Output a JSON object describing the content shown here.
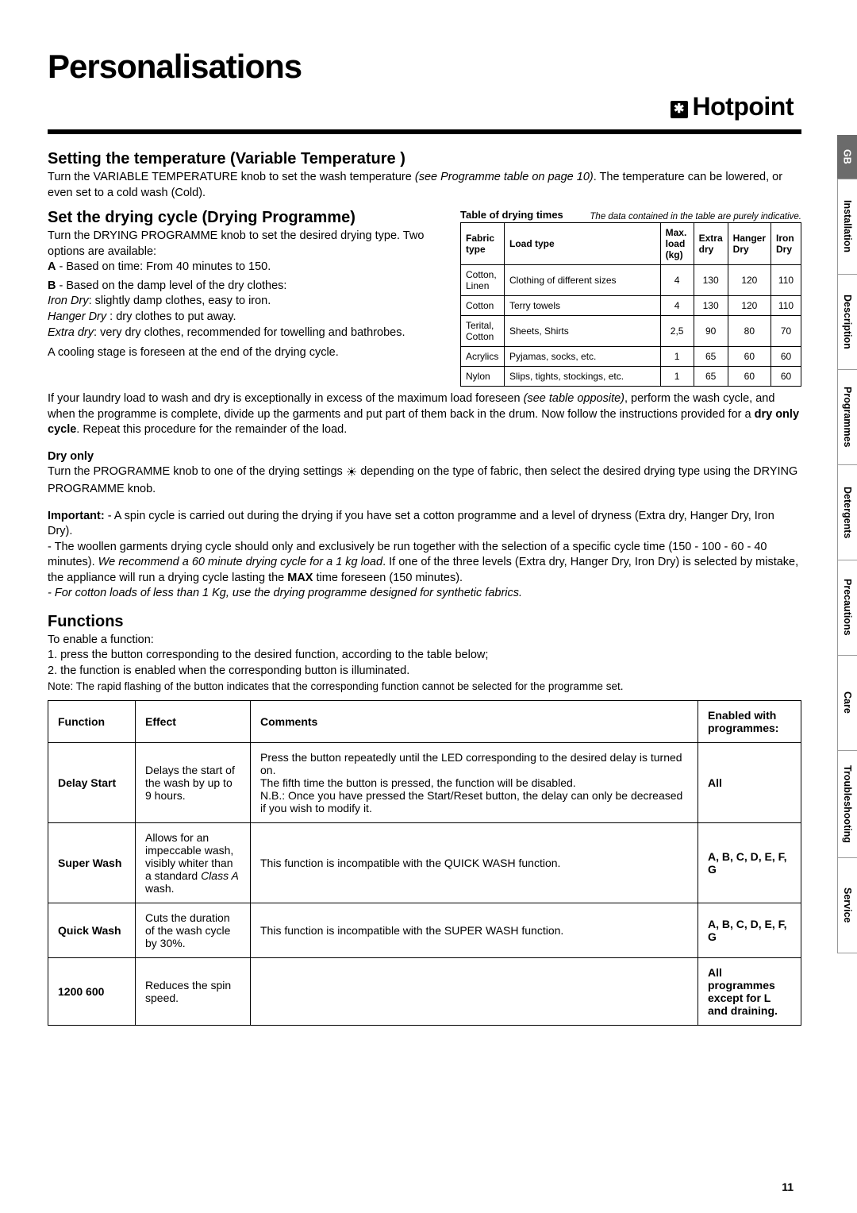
{
  "page_title": "Personalisations",
  "brand": "Hotpoint",
  "page_number": "11",
  "section1": {
    "heading": "Setting the temperature (Variable Temperature )",
    "p1a": "Turn the VARIABLE TEMPERATURE knob to set the wash temperature ",
    "p1b": "(see Programme table on page 10)",
    "p1c": ". The temperature can be lowered, or even set to a cold wash (Cold)."
  },
  "section2": {
    "heading": "Set the drying cycle (Drying Programme)",
    "p1": "Turn the DRYING PROGRAMME knob to set the desired drying type. Two options are available:",
    "a_label": "A",
    "a_text": " - Based on time: From 40 minutes to 150.",
    "b_label": "B",
    "b_text": " - Based on the damp level of the dry clothes:",
    "iron_label": "Iron Dry",
    "iron_text": ": slightly damp clothes, easy to iron.",
    "hanger_label": "Hanger Dry ",
    "hanger_text": ": dry clothes to put away.",
    "extra_label": "Extra dry",
    "extra_text": ": very dry clothes, recommended for towelling and bathrobes.",
    "cooling": "A cooling stage is foreseen at the end of the drying cycle.",
    "excess1": "If your laundry load to wash and dry is exceptionally in excess of the maximum load foreseen ",
    "excess2": "(see table opposite)",
    "excess3": ", perform the wash cycle, and when the programme is complete, divide up the garments and put part of them back in the drum. Now follow the instructions provided for a ",
    "excess4": "dry only cycle",
    "excess5": ". Repeat this procedure for the remainder of the load."
  },
  "dryonly": {
    "heading": "Dry only",
    "p1a": "Turn the PROGRAMME knob to one of the drying settings ",
    "p1b": " depending on the type of fabric, then select the desired drying type using the DRYING PROGRAMME knob."
  },
  "important": {
    "label": "Important:",
    "p1": " - A spin cycle is carried out during the drying if you have set a cotton programme and a level of dryness (Extra dry, Hanger Dry, Iron Dry).",
    "p2a": "- The woollen garments drying cycle should only and exclusively be run together with the selection of a specific cycle time (150 - 100 - 60 - 40 minutes). ",
    "p2b": "We recommend a 60 minute drying cycle for a 1 kg load",
    "p2c": ". If one of the three levels (Extra dry, Hanger Dry, Iron Dry) is selected by mistake, the appliance will run a drying cycle lasting the ",
    "p2d": "MAX",
    "p2e": " time foreseen (150 minutes).",
    "p3": "- For cotton loads of less than 1 Kg, use the drying programme designed for synthetic fabrics."
  },
  "drytable": {
    "caption": "Table of drying times",
    "note": "The data contained in the table are purely indicative.",
    "head": {
      "c1": "Fabric type",
      "c2": "Load type",
      "c3": "Max. load (kg)",
      "c4": "Extra dry",
      "c5": "Hanger Dry",
      "c6": "Iron Dry"
    },
    "rows": [
      {
        "c1": "Cotton, Linen",
        "c2": "Clothing of different sizes",
        "c3": "4",
        "c4": "130",
        "c5": "120",
        "c6": "110"
      },
      {
        "c1": "Cotton",
        "c2": "Terry towels",
        "c3": "4",
        "c4": "130",
        "c5": "120",
        "c6": "110"
      },
      {
        "c1": "Terital, Cotton",
        "c2": "Sheets, Shirts",
        "c3": "2,5",
        "c4": "90",
        "c5": "80",
        "c6": "70"
      },
      {
        "c1": "Acrylics",
        "c2": "Pyjamas, socks, etc.",
        "c3": "1",
        "c4": "65",
        "c5": "60",
        "c6": "60"
      },
      {
        "c1": "Nylon",
        "c2": "Slips, tights, stockings, etc.",
        "c3": "1",
        "c4": "65",
        "c5": "60",
        "c6": "60"
      }
    ]
  },
  "functions": {
    "heading": "Functions",
    "p1": "To enable a function:",
    "l1": "1. press the button corresponding to the desired function, according to the table below;",
    "l2": "2. the function is enabled when the corresponding button is illuminated.",
    "note": "Note: The rapid flashing of the button indicates that the corresponding function cannot be selected for the programme set.",
    "head": {
      "c1": "Function",
      "c2": "Effect",
      "c3": "Comments",
      "c4": "Enabled with programmes:"
    },
    "rows": [
      {
        "c1": "Delay Start",
        "c2": "Delays the start of the wash by up to 9 hours.",
        "c3": "Press the button repeatedly until the LED corresponding to the desired delay is turned on.\nThe fifth time the button is pressed, the function will be disabled.\nN.B.: Once you have pressed the Start/Reset button, the delay can only be decreased if you wish to modify it.",
        "c4": "All"
      },
      {
        "c1": "Super Wash",
        "c2a": "Allows for an impeccable wash, visibly whiter than a standard ",
        "c2b": "Class A",
        "c2c": " wash.",
        "c3": "This function is incompatible with the QUICK WASH function.",
        "c4": "A, B, C, D, E, F, G"
      },
      {
        "c1": "Quick Wash",
        "c2": "Cuts the duration of the wash cycle by 30%.",
        "c3": "This function is incompatible with the SUPER WASH function.",
        "c4": "A, B, C, D, E, F, G"
      },
      {
        "c1": "1200 600",
        "c2": "Reduces the spin speed.",
        "c3": "",
        "c4": "All programmes except for L and draining."
      }
    ]
  },
  "tabs": [
    "GB",
    "Installation",
    "Description",
    "Programmes",
    "Detergents",
    "Precautions",
    "Care",
    "Troubleshooting",
    "Service"
  ]
}
